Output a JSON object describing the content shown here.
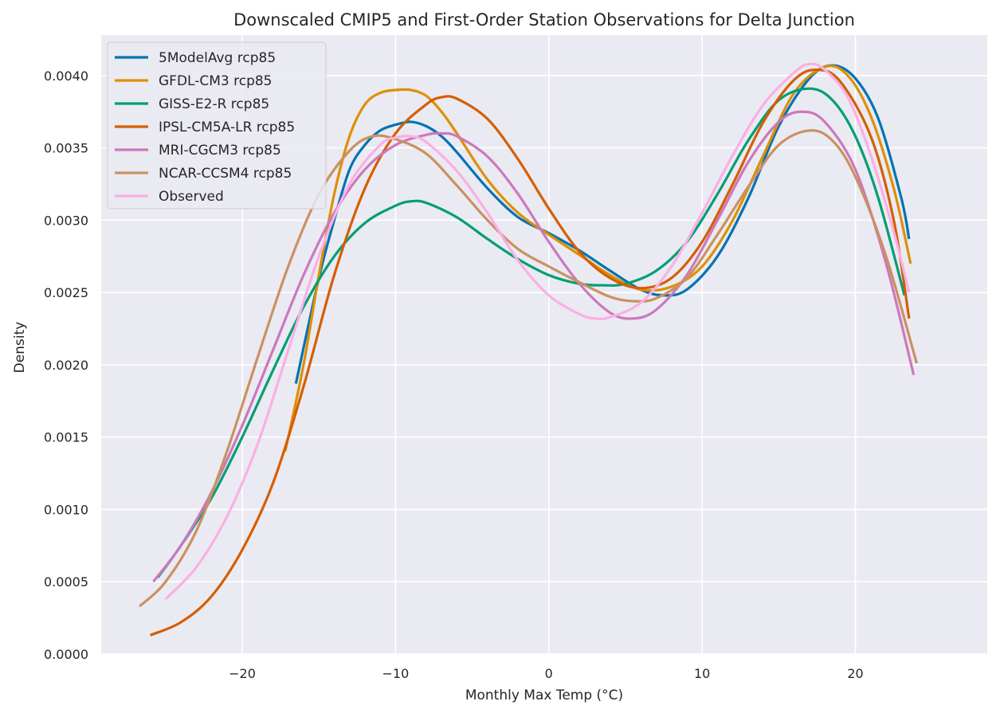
{
  "chart_data": {
    "type": "line",
    "title": "Downscaled CMIP5 and First-Order Station Observations for Delta Junction",
    "xlabel": "Monthly Max Temp (°C)",
    "ylabel": "Density",
    "xlim": [
      -29.2,
      28.6
    ],
    "ylim": [
      0,
      0.00428
    ],
    "x_ticks": [
      -20,
      -10,
      0,
      10,
      20
    ],
    "x_tick_labels": [
      "−20",
      "−10",
      "0",
      "10",
      "20"
    ],
    "y_ticks": [
      0,
      0.0005,
      0.001,
      0.0015,
      0.002,
      0.0025,
      0.003,
      0.0035,
      0.004
    ],
    "y_tick_labels": [
      "0.0000",
      "0.0005",
      "0.0010",
      "0.0015",
      "0.0020",
      "0.0025",
      "0.0030",
      "0.0035",
      "0.0040"
    ],
    "grid": true,
    "legend_position": "top-left",
    "series": [
      {
        "name": "5ModelAvg rcp85",
        "color": "#0173b2",
        "points": [
          [
            -16.5,
            0.00187
          ],
          [
            -15,
            0.0026
          ],
          [
            -14,
            0.003
          ],
          [
            -13,
            0.00335
          ],
          [
            -12,
            0.00352
          ],
          [
            -11,
            0.00362
          ],
          [
            -10,
            0.00366
          ],
          [
            -9,
            0.00368
          ],
          [
            -8,
            0.00365
          ],
          [
            -7,
            0.00358
          ],
          [
            -6,
            0.00347
          ],
          [
            -4,
            0.00322
          ],
          [
            -2,
            0.00302
          ],
          [
            0,
            0.00291
          ],
          [
            2,
            0.00279
          ],
          [
            4,
            0.00265
          ],
          [
            6,
            0.00252
          ],
          [
            7.5,
            0.00248
          ],
          [
            9,
            0.00252
          ],
          [
            11,
            0.00275
          ],
          [
            13,
            0.00315
          ],
          [
            15,
            0.00365
          ],
          [
            17,
            0.00398
          ],
          [
            18.5,
            0.00407
          ],
          [
            20,
            0.00398
          ],
          [
            21.5,
            0.0037
          ],
          [
            23,
            0.00315
          ],
          [
            23.5,
            0.00287
          ]
        ]
      },
      {
        "name": "GFDL-CM3 rcp85",
        "color": "#de8f05",
        "points": [
          [
            -17.2,
            0.0014
          ],
          [
            -16,
            0.002
          ],
          [
            -15,
            0.00262
          ],
          [
            -14,
            0.00318
          ],
          [
            -13,
            0.00358
          ],
          [
            -12,
            0.0038
          ],
          [
            -11,
            0.00388
          ],
          [
            -10,
            0.0039
          ],
          [
            -9,
            0.0039
          ],
          [
            -8,
            0.00386
          ],
          [
            -7,
            0.00375
          ],
          [
            -6,
            0.0036
          ],
          [
            -4,
            0.00328
          ],
          [
            -2,
            0.00305
          ],
          [
            0,
            0.0029
          ],
          [
            2,
            0.00276
          ],
          [
            4,
            0.00262
          ],
          [
            6,
            0.00252
          ],
          [
            8,
            0.00254
          ],
          [
            10,
            0.00268
          ],
          [
            12,
            0.003
          ],
          [
            14,
            0.00345
          ],
          [
            16,
            0.00388
          ],
          [
            18,
            0.00406
          ],
          [
            19.5,
            0.004
          ],
          [
            21,
            0.00372
          ],
          [
            22.5,
            0.00322
          ],
          [
            23.6,
            0.0027
          ]
        ]
      },
      {
        "name": "GISS-E2-R rcp85",
        "color": "#029e73",
        "points": [
          [
            -25.5,
            0.00053
          ],
          [
            -24,
            0.00075
          ],
          [
            -22,
            0.00108
          ],
          [
            -20,
            0.0015
          ],
          [
            -18,
            0.00196
          ],
          [
            -16,
            0.0024
          ],
          [
            -14,
            0.00275
          ],
          [
            -12,
            0.00298
          ],
          [
            -10,
            0.0031
          ],
          [
            -9,
            0.00313
          ],
          [
            -8,
            0.00312
          ],
          [
            -6,
            0.00302
          ],
          [
            -4,
            0.00287
          ],
          [
            -2,
            0.00273
          ],
          [
            0,
            0.00262
          ],
          [
            2,
            0.00256
          ],
          [
            3.5,
            0.00255
          ],
          [
            5,
            0.00256
          ],
          [
            7,
            0.00265
          ],
          [
            9,
            0.00285
          ],
          [
            11,
            0.00318
          ],
          [
            13,
            0.00355
          ],
          [
            15,
            0.00383
          ],
          [
            17,
            0.00391
          ],
          [
            18.5,
            0.00383
          ],
          [
            20,
            0.00358
          ],
          [
            21.5,
            0.00315
          ],
          [
            23.2,
            0.00248
          ]
        ]
      },
      {
        "name": "IPSL-CM5A-LR rcp85",
        "color": "#d55e00",
        "points": [
          [
            -26,
            0.00013
          ],
          [
            -24,
            0.00022
          ],
          [
            -22,
            0.0004
          ],
          [
            -20,
            0.00072
          ],
          [
            -18,
            0.00118
          ],
          [
            -16,
            0.00185
          ],
          [
            -14,
            0.00262
          ],
          [
            -12,
            0.00322
          ],
          [
            -10,
            0.0036
          ],
          [
            -8,
            0.0038
          ],
          [
            -7,
            0.00385
          ],
          [
            -6,
            0.00384
          ],
          [
            -4,
            0.0037
          ],
          [
            -2,
            0.00342
          ],
          [
            0,
            0.00308
          ],
          [
            2,
            0.00278
          ],
          [
            4,
            0.0026
          ],
          [
            6,
            0.00253
          ],
          [
            8,
            0.0026
          ],
          [
            10,
            0.00285
          ],
          [
            12,
            0.00325
          ],
          [
            14,
            0.00368
          ],
          [
            16,
            0.00397
          ],
          [
            17.5,
            0.00404
          ],
          [
            19,
            0.00396
          ],
          [
            21,
            0.00358
          ],
          [
            22.5,
            0.003
          ],
          [
            23.5,
            0.00232
          ]
        ]
      },
      {
        "name": "MRI-CGCM3 rcp85",
        "color": "#cc78bc",
        "points": [
          [
            -25.8,
            0.0005
          ],
          [
            -24,
            0.00075
          ],
          [
            -22,
            0.00112
          ],
          [
            -20,
            0.00158
          ],
          [
            -18,
            0.0021
          ],
          [
            -16,
            0.00262
          ],
          [
            -14,
            0.00305
          ],
          [
            -12,
            0.00335
          ],
          [
            -10,
            0.00352
          ],
          [
            -8,
            0.00359
          ],
          [
            -7,
            0.0036
          ],
          [
            -6,
            0.00358
          ],
          [
            -4,
            0.00344
          ],
          [
            -2,
            0.00318
          ],
          [
            0,
            0.00285
          ],
          [
            2,
            0.00256
          ],
          [
            4,
            0.00236
          ],
          [
            5.5,
            0.00232
          ],
          [
            7,
            0.00238
          ],
          [
            9,
            0.00262
          ],
          [
            11,
            0.003
          ],
          [
            13,
            0.0034
          ],
          [
            15,
            0.00368
          ],
          [
            16.5,
            0.00375
          ],
          [
            18,
            0.00368
          ],
          [
            20,
            0.00335
          ],
          [
            22,
            0.0027
          ],
          [
            23.8,
            0.00193
          ]
        ]
      },
      {
        "name": "NCAR-CCSM4 rcp85",
        "color": "#ca9161",
        "points": [
          [
            -26.7,
            0.00033
          ],
          [
            -25,
            0.0005
          ],
          [
            -23,
            0.00085
          ],
          [
            -21,
            0.0014
          ],
          [
            -19,
            0.00205
          ],
          [
            -17,
            0.00268
          ],
          [
            -15,
            0.00318
          ],
          [
            -13,
            0.00348
          ],
          [
            -11.5,
            0.00358
          ],
          [
            -10,
            0.00356
          ],
          [
            -8,
            0.00346
          ],
          [
            -6,
            0.00324
          ],
          [
            -4,
            0.003
          ],
          [
            -2,
            0.0028
          ],
          [
            0,
            0.00268
          ],
          [
            2,
            0.00257
          ],
          [
            4,
            0.00247
          ],
          [
            5.5,
            0.00244
          ],
          [
            7,
            0.00246
          ],
          [
            9,
            0.0026
          ],
          [
            11,
            0.0029
          ],
          [
            13,
            0.00323
          ],
          [
            15,
            0.00352
          ],
          [
            17,
            0.00362
          ],
          [
            18.5,
            0.00355
          ],
          [
            20,
            0.0033
          ],
          [
            22,
            0.00275
          ],
          [
            24,
            0.00201
          ]
        ]
      },
      {
        "name": "Observed",
        "color": "#fbafe4",
        "points": [
          [
            -25,
            0.00038
          ],
          [
            -23,
            0.0006
          ],
          [
            -21,
            0.00095
          ],
          [
            -19,
            0.00145
          ],
          [
            -17,
            0.0021
          ],
          [
            -15,
            0.00275
          ],
          [
            -13,
            0.00325
          ],
          [
            -11,
            0.00352
          ],
          [
            -10,
            0.00357
          ],
          [
            -9,
            0.00358
          ],
          [
            -8,
            0.00354
          ],
          [
            -6,
            0.00334
          ],
          [
            -4,
            0.00305
          ],
          [
            -2,
            0.00272
          ],
          [
            0,
            0.00248
          ],
          [
            2,
            0.00235
          ],
          [
            3,
            0.00232
          ],
          [
            4,
            0.00233
          ],
          [
            6,
            0.00243
          ],
          [
            8,
            0.00268
          ],
          [
            10,
            0.00305
          ],
          [
            12,
            0.00345
          ],
          [
            14,
            0.0038
          ],
          [
            16,
            0.00402
          ],
          [
            17,
            0.00408
          ],
          [
            18,
            0.00404
          ],
          [
            19.5,
            0.00385
          ],
          [
            21,
            0.00345
          ],
          [
            22.5,
            0.00292
          ],
          [
            23.5,
            0.0025
          ]
        ]
      }
    ]
  }
}
